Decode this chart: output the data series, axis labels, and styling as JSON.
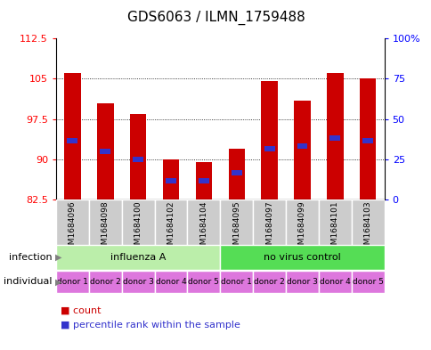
{
  "title": "GDS6063 / ILMN_1759488",
  "samples": [
    "GSM1684096",
    "GSM1684098",
    "GSM1684100",
    "GSM1684102",
    "GSM1684104",
    "GSM1684095",
    "GSM1684097",
    "GSM1684099",
    "GSM1684101",
    "GSM1684103"
  ],
  "bar_bottoms": [
    82.5,
    82.5,
    82.5,
    82.5,
    82.5,
    82.5,
    82.5,
    82.5,
    82.5,
    82.5
  ],
  "bar_tops": [
    106.0,
    100.5,
    98.5,
    90.0,
    89.5,
    92.0,
    104.5,
    101.0,
    106.0,
    105.0
  ],
  "blue_positions": [
    93.5,
    91.5,
    90.0,
    86.0,
    86.0,
    87.5,
    92.0,
    92.5,
    94.0,
    93.5
  ],
  "ylim": [
    82.5,
    112.5
  ],
  "yticks_left": [
    82.5,
    90,
    97.5,
    105,
    112.5
  ],
  "yticks_right": [
    0,
    25,
    50,
    75,
    100
  ],
  "ytick_right_labels": [
    "0",
    "25",
    "50",
    "75",
    "100%"
  ],
  "bar_color": "#cc0000",
  "blue_color": "#3333cc",
  "sample_bg_color": "#cccccc",
  "infection_colors": [
    "#bbeeaa",
    "#55dd55"
  ],
  "infection_labels": [
    "influenza A",
    "no virus control"
  ],
  "individual_labels": [
    "donor 1",
    "donor 2",
    "donor 3",
    "donor 4",
    "donor 5",
    "donor 1",
    "donor 2",
    "donor 3",
    "donor 4",
    "donor 5"
  ],
  "individual_color": "#dd77dd",
  "infection_label": "infection",
  "individual_row_label": "individual",
  "legend_count_label": "count",
  "legend_percentile_label": "percentile rank within the sample"
}
